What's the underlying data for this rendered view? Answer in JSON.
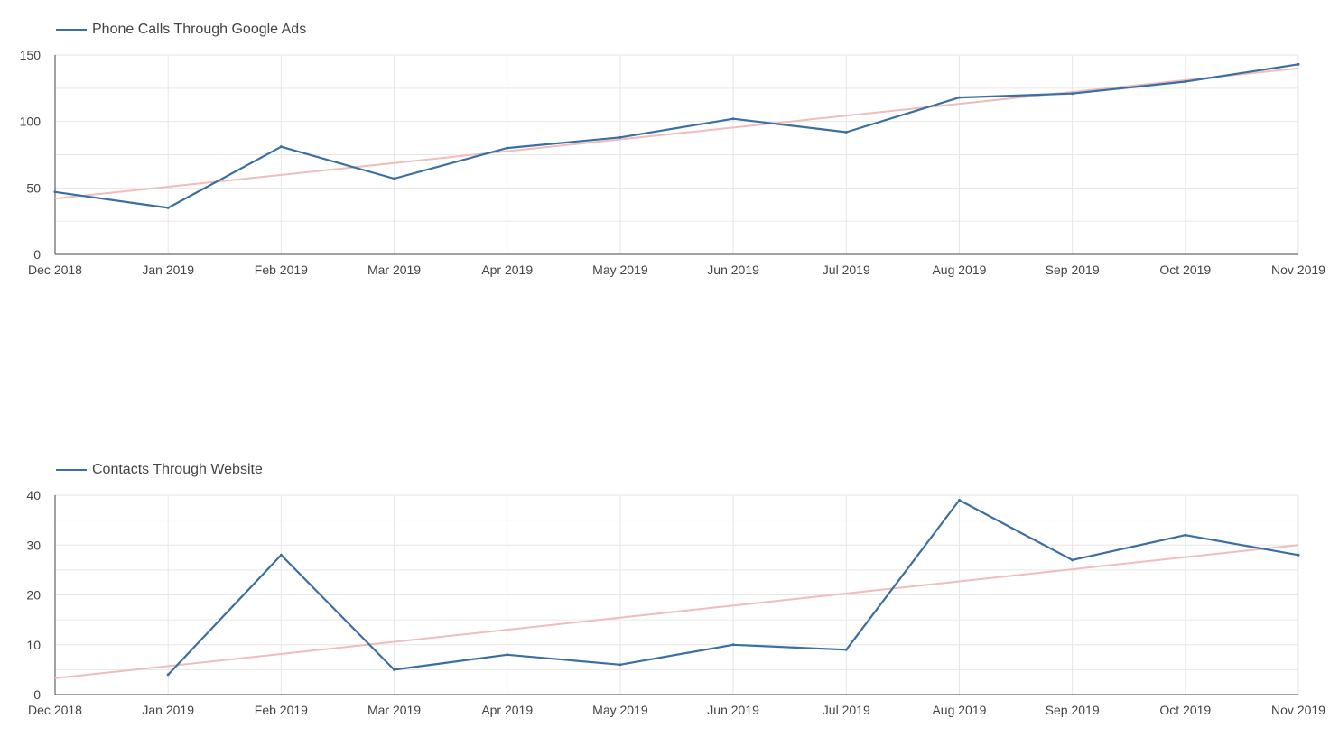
{
  "colors": {
    "series": "#3a6fa4",
    "trend": "#f0bcbc",
    "grid": "#e6e6e6",
    "axis": "#444444"
  },
  "chart_data": [
    {
      "type": "line",
      "legend": "Phone Calls Through Google Ads",
      "categories": [
        "Dec 2018",
        "Jan 2019",
        "Feb 2019",
        "Mar 2019",
        "Apr 2019",
        "May 2019",
        "Jun 2019",
        "Jul 2019",
        "Aug 2019",
        "Sep 2019",
        "Oct 2019",
        "Nov 2019"
      ],
      "series": [
        {
          "name": "Phone Calls Through Google Ads",
          "values": [
            47,
            35,
            81,
            57,
            80,
            88,
            102,
            92,
            118,
            121,
            130,
            143
          ]
        }
      ],
      "trendline": [
        42,
        140
      ],
      "ylim": [
        0,
        150
      ],
      "yticks": [
        0,
        50,
        100,
        150
      ],
      "grid": true,
      "legend_position": "top-left"
    },
    {
      "type": "line",
      "legend": "Contacts Through Website",
      "categories": [
        "Dec 2018",
        "Jan 2019",
        "Feb 2019",
        "Mar 2019",
        "Apr 2019",
        "May 2019",
        "Jun 2019",
        "Jul 2019",
        "Aug 2019",
        "Sep 2019",
        "Oct 2019",
        "Nov 2019"
      ],
      "series": [
        {
          "name": "Contacts Through Website",
          "values": [
            null,
            4,
            28,
            5,
            8,
            6,
            10,
            9,
            39,
            27,
            32,
            28
          ]
        }
      ],
      "trendline": [
        3.3,
        30
      ],
      "ylim": [
        0,
        40
      ],
      "yticks": [
        0,
        10,
        20,
        30,
        40
      ],
      "grid": true,
      "legend_position": "top-left"
    }
  ]
}
